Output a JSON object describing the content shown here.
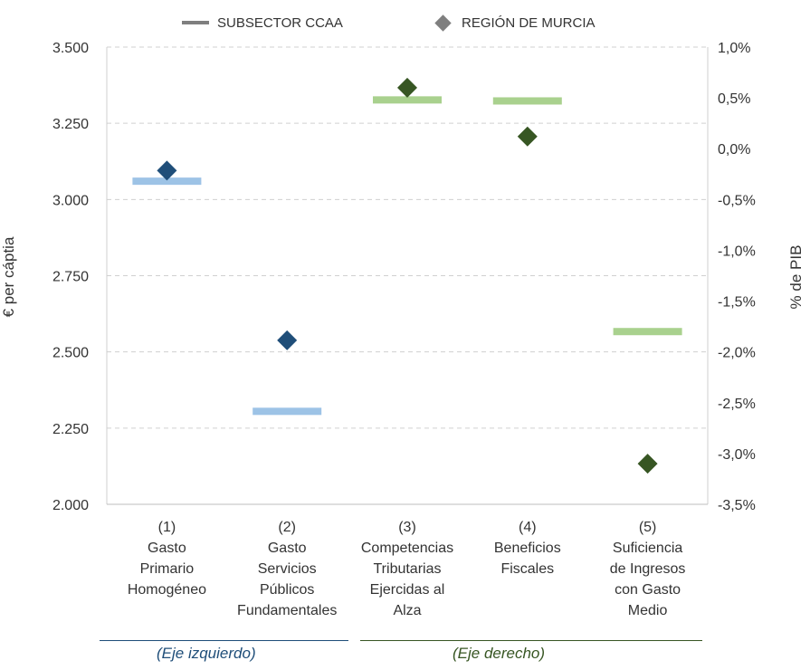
{
  "legend": {
    "series_label": "SUBSECTOR CCAA",
    "region_label": "REGIÓN DE MURCIA"
  },
  "colors": {
    "left_axis_bar": "#9dc3e6",
    "left_axis_marker": "#1f4e79",
    "right_axis_bar": "#a9d18e",
    "right_axis_marker": "#375623",
    "legend_gray": "#7f7f7f",
    "footer_left": "#1f4e79",
    "footer_right": "#375623"
  },
  "footer": {
    "left_label": "(Eje izquierdo)",
    "right_label": "(Eje derecho)"
  },
  "chart_data": {
    "type": "scatter",
    "y_left": {
      "label": "€ per cáptia",
      "range": [
        2000,
        3500
      ],
      "ticks": [
        "2.000",
        "2.250",
        "2.500",
        "2.750",
        "3.000",
        "3.250",
        "3.500"
      ]
    },
    "y_right": {
      "label": "% de PIB",
      "range": [
        -3.5,
        1.0
      ],
      "ticks": [
        "-3,5%",
        "-3,0%",
        "-2,5%",
        "-2,0%",
        "-1,5%",
        "-1,0%",
        "-0,5%",
        "0,0%",
        "0,5%",
        "1,0%"
      ]
    },
    "grid": true,
    "legend_position": "top",
    "categories": [
      [
        "(1)",
        "Gasto",
        "Primario",
        "Homogéneo"
      ],
      [
        "(2)",
        "Gasto",
        "Servicios",
        "Públicos",
        "Fundamentales"
      ],
      [
        "(3)",
        "Competencias",
        "Tributarias",
        "Ejercidas al",
        "Alza"
      ],
      [
        "(4)",
        "Beneficios",
        "Fiscales"
      ],
      [
        "(5)",
        "Suficiencia",
        "de Ingresos",
        "con Gasto",
        "Medio"
      ]
    ],
    "series": [
      {
        "name": "SUBSECTOR CCAA",
        "marker": "bar",
        "values": [
          {
            "axis": "left",
            "value": 3060
          },
          {
            "axis": "left",
            "value": 2305
          },
          {
            "axis": "right",
            "value": 0.48
          },
          {
            "axis": "right",
            "value": 0.47
          },
          {
            "axis": "right",
            "value": -1.8
          }
        ]
      },
      {
        "name": "REGIÓN DE MURCIA",
        "marker": "diamond",
        "values": [
          {
            "axis": "left",
            "value": 3095
          },
          {
            "axis": "left",
            "value": 2538
          },
          {
            "axis": "right",
            "value": 0.6
          },
          {
            "axis": "right",
            "value": 0.12
          },
          {
            "axis": "right",
            "value": -3.1
          }
        ]
      }
    ]
  }
}
